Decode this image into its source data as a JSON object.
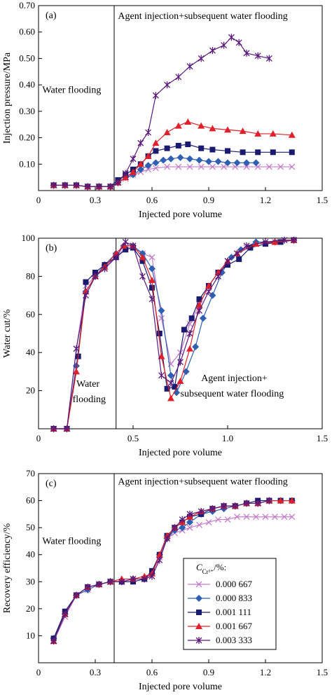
{
  "figure": {
    "legend": {
      "title": "C",
      "title_sub": "Cr³⁺",
      "title_tail": "/%:",
      "entries": [
        "0.000 667",
        "0.000 833",
        "0.001 111",
        "0.001 667",
        "0.003 333"
      ]
    }
  },
  "series_styles": [
    {
      "color": "#c47cc9",
      "marker": "x"
    },
    {
      "color": "#2f5fb0",
      "marker": "diamond"
    },
    {
      "color": "#1a1a6e",
      "marker": "square"
    },
    {
      "color": "#e0202a",
      "marker": "triangle"
    },
    {
      "color": "#5a1a7a",
      "marker": "star"
    }
  ],
  "chart_data": [
    {
      "type": "line",
      "panel_label": "(a)",
      "xlabel": "Injected pore volume",
      "ylabel": "Injection pressure/MPa",
      "xlim": [
        0,
        1.5
      ],
      "ylim": [
        0,
        0.7
      ],
      "xticks": [
        0,
        0.3,
        0.6,
        0.9,
        1.2,
        1.5
      ],
      "xtick_labels": [
        "0",
        "0.3",
        "0.6",
        "0.9",
        "1.2",
        "1.5"
      ],
      "yticks": [
        0.1,
        0.2,
        0.3,
        0.4,
        0.5,
        0.6,
        0.7
      ],
      "ytick_labels": [
        "0.10",
        "0.20",
        "0.30",
        "0.40",
        "0.50",
        "0.60",
        "0.70"
      ],
      "divider_x": 0.4,
      "annotations": [
        {
          "text": "Water flooding",
          "x": 0.02,
          "y": 0.37
        },
        {
          "text": "Agent injection+subsequent water flooding",
          "x": 0.42,
          "y": 0.65
        }
      ],
      "series": [
        {
          "name": "0.000 667",
          "x": [
            0.08,
            0.14,
            0.2,
            0.26,
            0.32,
            0.38,
            0.42,
            0.46,
            0.5,
            0.54,
            0.58,
            0.62,
            0.68,
            0.74,
            0.8,
            0.86,
            0.92,
            0.98,
            1.04,
            1.1,
            1.16,
            1.22,
            1.28,
            1.34
          ],
          "y": [
            0.02,
            0.02,
            0.02,
            0.015,
            0.015,
            0.015,
            0.03,
            0.045,
            0.06,
            0.07,
            0.08,
            0.085,
            0.09,
            0.09,
            0.09,
            0.09,
            0.09,
            0.09,
            0.09,
            0.09,
            0.09,
            0.09,
            0.09,
            0.09
          ]
        },
        {
          "name": "0.000 833",
          "x": [
            0.08,
            0.14,
            0.2,
            0.26,
            0.32,
            0.38,
            0.42,
            0.46,
            0.5,
            0.54,
            0.58,
            0.62,
            0.66,
            0.7,
            0.75,
            0.8,
            0.85,
            0.9,
            0.95,
            1.0,
            1.05,
            1.1,
            1.15
          ],
          "y": [
            0.02,
            0.02,
            0.02,
            0.015,
            0.015,
            0.015,
            0.03,
            0.05,
            0.06,
            0.08,
            0.095,
            0.105,
            0.115,
            0.12,
            0.125,
            0.12,
            0.115,
            0.11,
            0.11,
            0.105,
            0.105,
            0.105,
            0.105
          ]
        },
        {
          "name": "0.001 111",
          "x": [
            0.08,
            0.14,
            0.2,
            0.26,
            0.32,
            0.38,
            0.42,
            0.46,
            0.5,
            0.54,
            0.58,
            0.62,
            0.68,
            0.74,
            0.79,
            0.86,
            0.92,
            1.0,
            1.08,
            1.16,
            1.24,
            1.34
          ],
          "y": [
            0.02,
            0.02,
            0.02,
            0.015,
            0.015,
            0.015,
            0.04,
            0.06,
            0.08,
            0.1,
            0.13,
            0.15,
            0.16,
            0.17,
            0.175,
            0.16,
            0.155,
            0.15,
            0.145,
            0.145,
            0.145,
            0.145
          ]
        },
        {
          "name": "0.001 667",
          "x": [
            0.08,
            0.14,
            0.2,
            0.26,
            0.32,
            0.38,
            0.42,
            0.46,
            0.5,
            0.54,
            0.58,
            0.62,
            0.68,
            0.74,
            0.79,
            0.86,
            0.92,
            1.0,
            1.08,
            1.16,
            1.24,
            1.34
          ],
          "y": [
            0.02,
            0.02,
            0.02,
            0.015,
            0.015,
            0.015,
            0.03,
            0.05,
            0.07,
            0.1,
            0.13,
            0.18,
            0.22,
            0.245,
            0.26,
            0.245,
            0.235,
            0.23,
            0.225,
            0.215,
            0.215,
            0.21
          ]
        },
        {
          "name": "0.003 333",
          "x": [
            0.08,
            0.14,
            0.2,
            0.26,
            0.32,
            0.38,
            0.42,
            0.46,
            0.5,
            0.54,
            0.58,
            0.62,
            0.68,
            0.74,
            0.8,
            0.86,
            0.92,
            0.98,
            1.02,
            1.06,
            1.1,
            1.16,
            1.22
          ],
          "y": [
            0.02,
            0.02,
            0.02,
            0.015,
            0.015,
            0.015,
            0.03,
            0.065,
            0.12,
            0.18,
            0.22,
            0.36,
            0.4,
            0.43,
            0.47,
            0.5,
            0.53,
            0.55,
            0.58,
            0.56,
            0.52,
            0.51,
            0.5
          ]
        }
      ]
    },
    {
      "type": "line",
      "panel_label": "(b)",
      "xlabel": "Injected pore volume",
      "ylabel": "Water cut/%",
      "xlim": [
        0,
        1.5
      ],
      "ylim": [
        0,
        100
      ],
      "xticks": [
        0,
        0.5,
        1.0,
        1.5
      ],
      "xtick_labels": [
        "0",
        "0.5",
        "1.0",
        "1.5"
      ],
      "yticks": [
        20,
        40,
        60,
        80,
        100
      ],
      "ytick_labels": [
        "20",
        "40",
        "60",
        "80",
        "100"
      ],
      "divider_x": 0.41,
      "annotations": [
        {
          "text": "Water",
          "x": 0.2,
          "y": 22
        },
        {
          "text": "flooding",
          "x": 0.18,
          "y": 14
        },
        {
          "text": "Agent injection+",
          "x": 0.86,
          "y": 25
        },
        {
          "text": "subsequent water flooding",
          "x": 0.75,
          "y": 17
        }
      ],
      "series": [
        {
          "name": "0.000 667",
          "x": [
            0.08,
            0.15,
            0.2,
            0.25,
            0.3,
            0.35,
            0.41,
            0.46,
            0.5,
            0.55,
            0.6,
            0.65,
            0.7,
            0.75,
            0.8,
            0.85,
            0.9,
            0.95,
            1.0,
            1.05,
            1.1,
            1.15,
            1.25,
            1.35
          ],
          "y": [
            0,
            0,
            42,
            75,
            80,
            85,
            90,
            95,
            95,
            92,
            90,
            58,
            34,
            40,
            55,
            65,
            75,
            82,
            88,
            92,
            95,
            97,
            98,
            99
          ]
        },
        {
          "name": "0.000 833",
          "x": [
            0.08,
            0.15,
            0.2,
            0.25,
            0.3,
            0.35,
            0.41,
            0.45,
            0.5,
            0.55,
            0.6,
            0.65,
            0.7,
            0.73,
            0.78,
            0.83,
            0.87,
            0.92,
            0.97,
            1.02,
            1.07,
            1.15,
            1.25,
            1.35
          ],
          "y": [
            0,
            0,
            33,
            72,
            80,
            86,
            92,
            96,
            96,
            92,
            84,
            62,
            28,
            19,
            30,
            43,
            58,
            70,
            82,
            90,
            94,
            98,
            98,
            99
          ]
        },
        {
          "name": "0.001 111",
          "x": [
            0.08,
            0.15,
            0.21,
            0.25,
            0.3,
            0.35,
            0.41,
            0.46,
            0.5,
            0.55,
            0.6,
            0.64,
            0.68,
            0.72,
            0.77,
            0.81,
            0.85,
            0.9,
            0.95,
            1.0,
            1.06,
            1.12,
            1.2,
            1.28,
            1.35
          ],
          "y": [
            0,
            0,
            38,
            77,
            82,
            86,
            90,
            94,
            95,
            88,
            74,
            50,
            21,
            22,
            52,
            58,
            68,
            75,
            82,
            86,
            89,
            95,
            97,
            98,
            99
          ]
        },
        {
          "name": "0.001 667",
          "x": [
            0.08,
            0.15,
            0.2,
            0.25,
            0.3,
            0.35,
            0.41,
            0.45,
            0.5,
            0.55,
            0.6,
            0.65,
            0.7,
            0.75,
            0.8,
            0.85,
            0.9,
            0.95,
            1.0,
            1.05,
            1.15,
            1.25,
            1.35
          ],
          "y": [
            0,
            0,
            30,
            72,
            80,
            85,
            92,
            96,
            96,
            90,
            78,
            38,
            16,
            25,
            42,
            65,
            75,
            82,
            88,
            92,
            97,
            98,
            99
          ]
        },
        {
          "name": "0.003 333",
          "x": [
            0.08,
            0.15,
            0.2,
            0.25,
            0.3,
            0.35,
            0.41,
            0.46,
            0.5,
            0.55,
            0.6,
            0.65,
            0.7,
            0.75,
            0.8,
            0.85,
            0.9,
            0.95,
            1.0,
            1.05,
            1.1,
            1.2,
            1.3,
            1.35
          ],
          "y": [
            0,
            0,
            42,
            70,
            80,
            84,
            90,
            98,
            96,
            80,
            68,
            28,
            24,
            35,
            50,
            62,
            72,
            80,
            88,
            92,
            96,
            98,
            99,
            99
          ]
        }
      ]
    },
    {
      "type": "line",
      "panel_label": "(c)",
      "xlabel": "Injected pore volume",
      "ylabel": "Recovery efficiency/%",
      "xlim": [
        0,
        1.5
      ],
      "ylim": [
        0,
        70
      ],
      "xticks": [
        0,
        0.3,
        0.6,
        0.9,
        1.2,
        1.5
      ],
      "xtick_labels": [
        "0",
        "0.3",
        "0.6",
        "0.9",
        "1.2",
        "1.5"
      ],
      "yticks": [
        10,
        20,
        30,
        40,
        50,
        60,
        70
      ],
      "ytick_labels": [
        "10",
        "20",
        "30",
        "40",
        "50",
        "60",
        "70"
      ],
      "divider_x": 0.4,
      "annotations": [
        {
          "text": "Water flooding",
          "x": 0.02,
          "y": 44
        },
        {
          "text": "Agent injection+subsequent water flooding",
          "x": 0.42,
          "y": 66
        }
      ],
      "series": [
        {
          "name": "0.000 667",
          "x": [
            0.08,
            0.14,
            0.2,
            0.26,
            0.32,
            0.38,
            0.44,
            0.5,
            0.56,
            0.6,
            0.64,
            0.68,
            0.72,
            0.76,
            0.8,
            0.85,
            0.9,
            0.95,
            1.0,
            1.05,
            1.1,
            1.15,
            1.2,
            1.25,
            1.3,
            1.34
          ],
          "y": [
            8,
            17,
            25,
            27,
            29,
            30,
            30,
            31,
            31,
            33,
            39,
            46,
            48,
            49,
            50,
            51,
            52,
            53,
            53,
            54,
            54,
            54,
            54,
            54,
            54,
            54
          ]
        },
        {
          "name": "0.000 833",
          "x": [
            0.08,
            0.14,
            0.2,
            0.26,
            0.32,
            0.38,
            0.44,
            0.5,
            0.56,
            0.6,
            0.64,
            0.68,
            0.72,
            0.76,
            0.8,
            0.86,
            0.92,
            0.98,
            1.04,
            1.1,
            1.16,
            1.22,
            1.28,
            1.34
          ],
          "y": [
            9,
            18,
            25,
            27,
            29,
            30,
            30,
            31,
            31,
            33,
            40,
            46,
            49,
            50,
            52,
            55,
            56,
            57,
            58,
            59,
            59,
            60,
            60,
            60
          ]
        },
        {
          "name": "0.001 111",
          "x": [
            0.08,
            0.14,
            0.2,
            0.26,
            0.32,
            0.38,
            0.44,
            0.5,
            0.56,
            0.6,
            0.64,
            0.68,
            0.72,
            0.76,
            0.8,
            0.86,
            0.92,
            0.98,
            1.04,
            1.1,
            1.16,
            1.22,
            1.28,
            1.34
          ],
          "y": [
            9,
            19,
            25,
            28,
            29,
            30,
            30,
            30,
            31,
            34,
            40,
            47,
            50,
            52,
            54,
            55,
            57,
            58,
            58,
            59,
            60,
            60,
            60,
            60
          ]
        },
        {
          "name": "0.001 667",
          "x": [
            0.08,
            0.14,
            0.2,
            0.26,
            0.32,
            0.38,
            0.44,
            0.5,
            0.56,
            0.6,
            0.64,
            0.68,
            0.72,
            0.76,
            0.8,
            0.86,
            0.92,
            0.98,
            1.04,
            1.1,
            1.16,
            1.22,
            1.28,
            1.34
          ],
          "y": [
            8,
            18,
            25,
            28,
            29,
            30,
            31,
            31,
            32,
            33,
            40,
            47,
            50,
            52,
            54,
            56,
            57,
            58,
            58,
            59,
            59,
            60,
            60,
            60
          ]
        },
        {
          "name": "0.003 333",
          "x": [
            0.08,
            0.14,
            0.2,
            0.26,
            0.32,
            0.38,
            0.44,
            0.5,
            0.56,
            0.6,
            0.64,
            0.68,
            0.72,
            0.76,
            0.8,
            0.86,
            0.92,
            0.98,
            1.04,
            1.1,
            1.16,
            1.22
          ],
          "y": [
            8,
            18,
            25,
            28,
            29,
            30,
            30,
            31,
            31,
            32,
            38,
            46,
            50,
            53,
            55,
            56,
            57,
            58,
            58,
            59,
            59,
            60
          ]
        }
      ]
    }
  ]
}
